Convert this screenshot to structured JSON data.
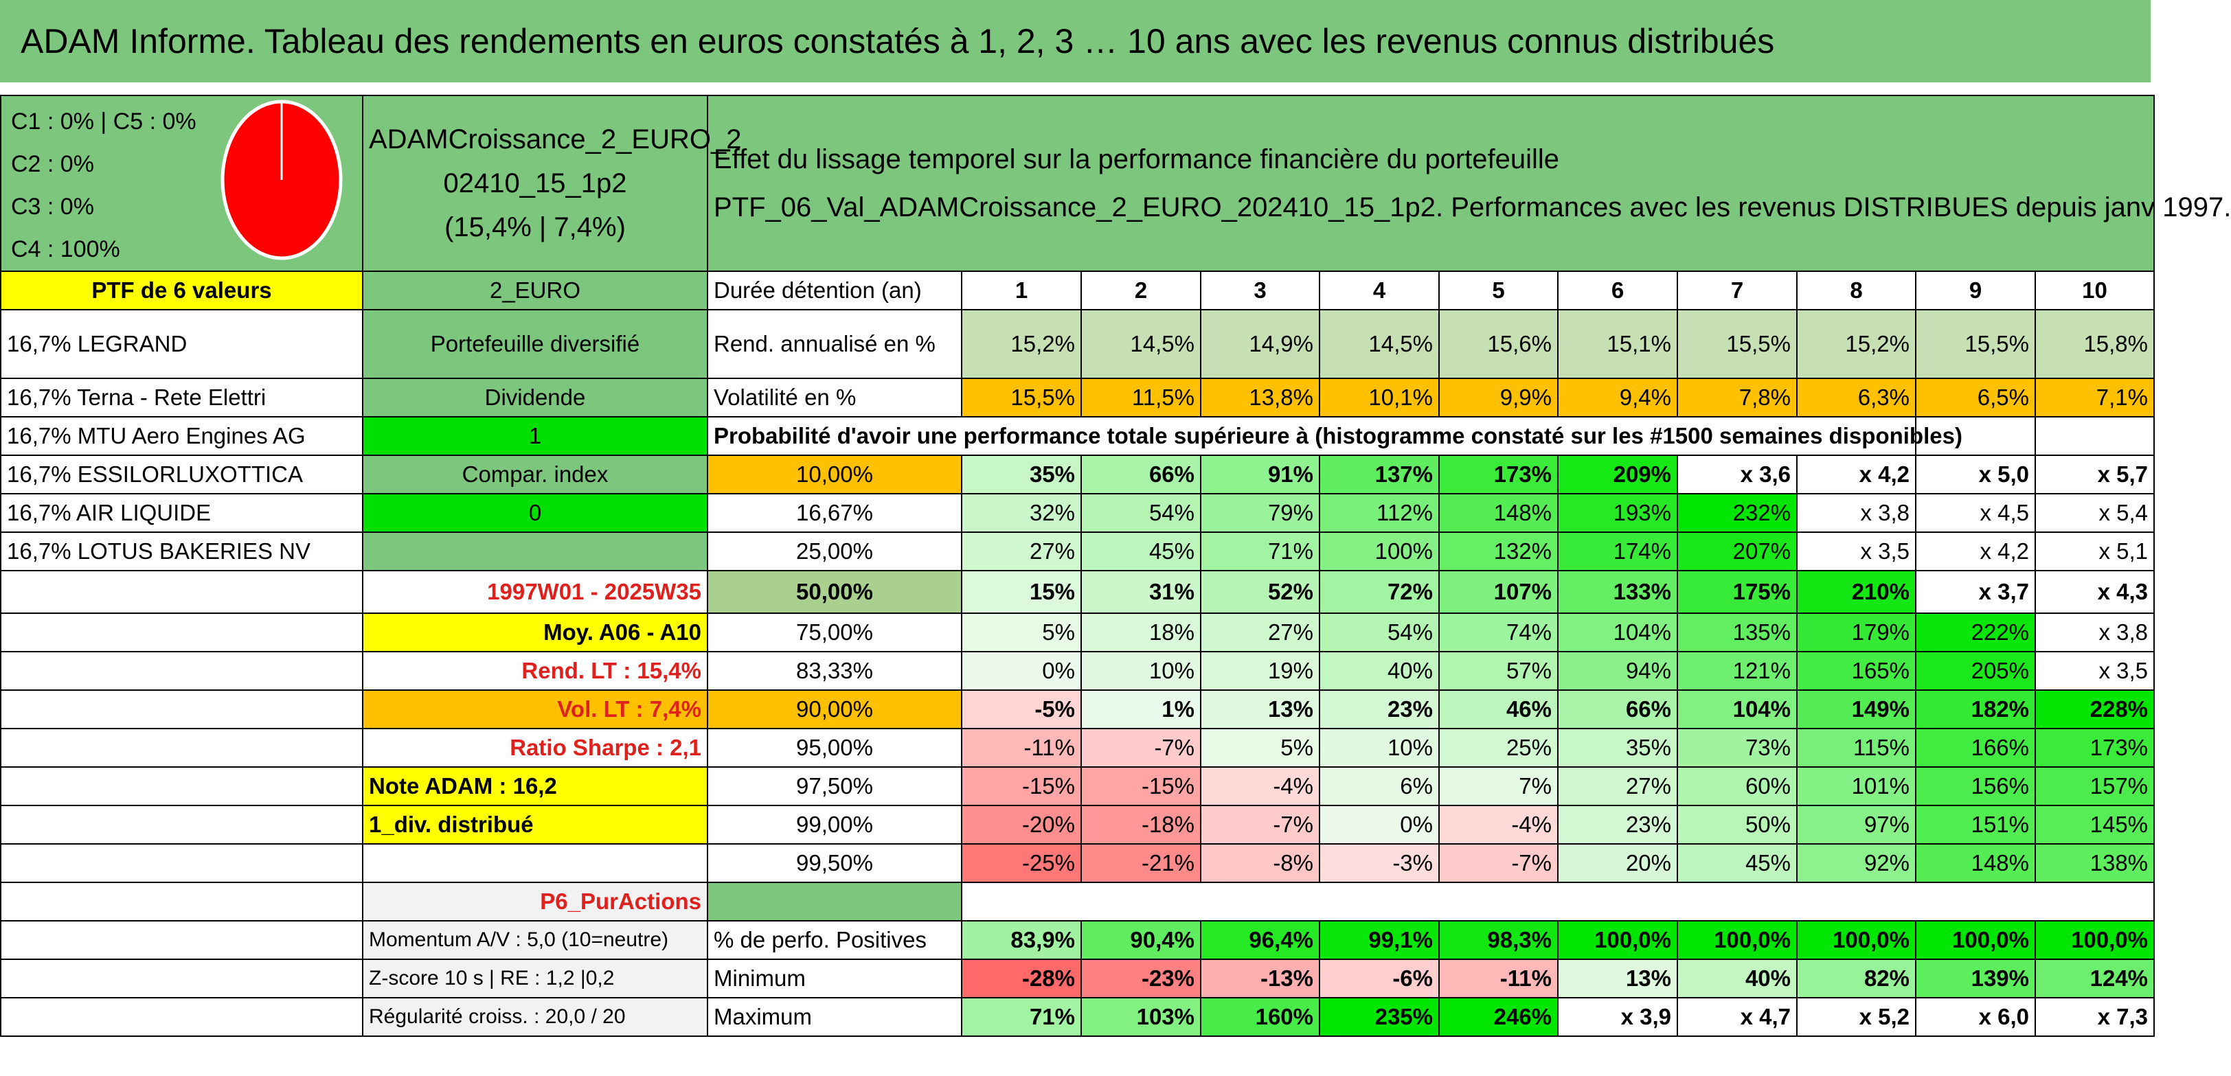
{
  "title": "ADAM Informe. Tableau des rendements en euros constatés à 1, 2, 3 … 10 ans avec les revenus connus distribués",
  "legend": [
    "C1 : 0% | C5 : 0%",
    "C2 : 0%",
    "C3 : 0%",
    "C4 : 100%"
  ],
  "pie": {
    "C4": 100,
    "color": "#ff0000"
  },
  "fund": {
    "name_line1": "ADAMCroissance_2_EURO_2",
    "name_line2": "02410_15_1p2",
    "perf": "(15,4% | 7,4%)"
  },
  "effect": {
    "line1": "Effet du lissage temporel sur la performance financière du portefeuille",
    "line2": "PTF_06_Val_ADAMCroissance_2_EURO_202410_15_1p2. Performances avec les revenus DISTRIBUES depuis janv 1997."
  },
  "left": {
    "ptf": "PTF de 6 valeurs",
    "holdings": [
      "16,7% LEGRAND",
      "16,7% Terna - Rete Elettri",
      "16,7% MTU Aero Engines AG",
      "16,7% ESSILORLUXOTTICA",
      "16,7% AIR LIQUIDE",
      "16,7% LOTUS BAKERIES NV"
    ]
  },
  "mid": {
    "euro": "2_EURO",
    "diversified": "Portefeuille diversifié",
    "dividend": "Dividende",
    "one": "1",
    "compar": "Compar. index",
    "zero": "0",
    "period": "1997W01 - 2025W35",
    "moy": "Moy. A06 - A10",
    "rend_lt": "Rend. LT : 15,4%",
    "vol_lt": "Vol. LT : 7,4%",
    "sharpe": "Ratio Sharpe : 2,1",
    "note": "Note ADAM : 16,2",
    "div": "1_div. distribué",
    "pur": "P6_PurActions",
    "momentum": "Momentum A/V : 5,0 (10=neutre)",
    "zscore": "Z-score 10 s | RE : 1,2 |0,2",
    "regular": "Régularité croiss. : 20,0 / 20"
  },
  "table": {
    "duration_label": "Durée détention (an)",
    "years": [
      "1",
      "2",
      "3",
      "4",
      "5",
      "6",
      "7",
      "8",
      "9",
      "10"
    ],
    "rend_label": "Rend. annualisé en %",
    "rend": [
      "15,2%",
      "14,5%",
      "14,9%",
      "14,5%",
      "15,6%",
      "15,1%",
      "15,5%",
      "15,2%",
      "15,5%",
      "15,8%"
    ],
    "vol_label": "Volatilité en %",
    "vol": [
      "15,5%",
      "11,5%",
      "13,8%",
      "10,1%",
      "9,9%",
      "9,4%",
      "7,8%",
      "6,3%",
      "6,5%",
      "7,1%"
    ],
    "prob_label": "Probabilité d'avoir une performance totale supérieure à (histogramme constaté sur les #1500 semaines disponibles)",
    "rows": [
      {
        "p": "10,00%",
        "v": [
          "35%",
          "66%",
          "91%",
          "137%",
          "173%",
          "209%",
          "x 3,6",
          "x 4,2",
          "x 5,0",
          "x 5,7"
        ]
      },
      {
        "p": "16,67%",
        "v": [
          "32%",
          "54%",
          "79%",
          "112%",
          "148%",
          "193%",
          "232%",
          "x 3,8",
          "x 4,5",
          "x 5,4"
        ]
      },
      {
        "p": "25,00%",
        "v": [
          "27%",
          "45%",
          "71%",
          "100%",
          "132%",
          "174%",
          "207%",
          "x 3,5",
          "x 4,2",
          "x 5,1"
        ]
      },
      {
        "p": "50,00%",
        "v": [
          "15%",
          "31%",
          "52%",
          "72%",
          "107%",
          "133%",
          "175%",
          "210%",
          "x 3,7",
          "x 4,3"
        ]
      },
      {
        "p": "75,00%",
        "v": [
          "5%",
          "18%",
          "27%",
          "54%",
          "74%",
          "104%",
          "135%",
          "179%",
          "222%",
          "x 3,8"
        ]
      },
      {
        "p": "83,33%",
        "v": [
          "0%",
          "10%",
          "19%",
          "40%",
          "57%",
          "94%",
          "121%",
          "165%",
          "205%",
          "x 3,5"
        ]
      },
      {
        "p": "90,00%",
        "v": [
          "-5%",
          "1%",
          "13%",
          "23%",
          "46%",
          "66%",
          "104%",
          "149%",
          "182%",
          "228%"
        ]
      },
      {
        "p": "95,00%",
        "v": [
          "-11%",
          "-7%",
          "5%",
          "10%",
          "25%",
          "35%",
          "73%",
          "115%",
          "166%",
          "173%"
        ]
      },
      {
        "p": "97,50%",
        "v": [
          "-15%",
          "-15%",
          "-4%",
          "6%",
          "7%",
          "27%",
          "60%",
          "101%",
          "156%",
          "157%"
        ]
      },
      {
        "p": "99,00%",
        "v": [
          "-20%",
          "-18%",
          "-7%",
          "0%",
          "-4%",
          "23%",
          "50%",
          "97%",
          "151%",
          "145%"
        ]
      },
      {
        "p": "99,50%",
        "v": [
          "-25%",
          "-21%",
          "-8%",
          "-3%",
          "-7%",
          "20%",
          "45%",
          "92%",
          "148%",
          "138%"
        ]
      }
    ],
    "pos_label": "% de perfo. Positives",
    "pos": [
      "83,9%",
      "90,4%",
      "96,4%",
      "99,1%",
      "98,3%",
      "100,0%",
      "100,0%",
      "100,0%",
      "100,0%",
      "100,0%"
    ],
    "min_label": "Minimum",
    "min": [
      "-28%",
      "-23%",
      "-13%",
      "-6%",
      "-11%",
      "13%",
      "40%",
      "82%",
      "139%",
      "124%"
    ],
    "max_label": "Maximum",
    "max": [
      "71%",
      "103%",
      "160%",
      "235%",
      "246%",
      "x 3,9",
      "x 4,7",
      "x 5,2",
      "x 6,0",
      "x 7,3"
    ]
  },
  "colors": {
    "green_dark": "#7dc67d",
    "green_light": "#c6e0b4",
    "yellow": "#ffff00",
    "orange": "#ffc000",
    "lime": "#00e000",
    "red_text": "#e0201c"
  }
}
